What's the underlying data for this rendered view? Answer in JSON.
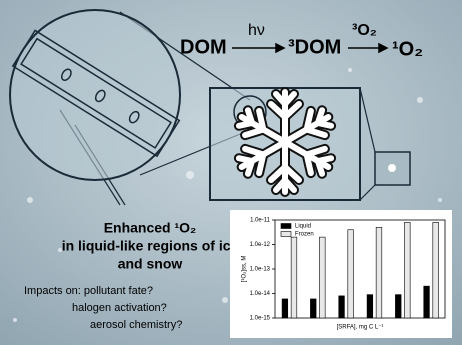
{
  "scheme": {
    "reactant": "DOM",
    "light": "hν",
    "intermediate": "³DOM",
    "oxygen": "³O₂",
    "product": "¹O₂"
  },
  "caption": {
    "lines": [
      "Enhanced ¹O₂",
      "in liquid-like regions of ice",
      "and snow"
    ]
  },
  "impacts": {
    "lines": [
      "Impacts on: pollutant fate?",
      "halogen activation?",
      "aerosol chemistry?"
    ]
  },
  "inset_chart": {
    "type": "bar",
    "log_scale": true,
    "y_label": "[¹O₂]ss, M",
    "x_label": "[SRFA], mg C L⁻¹",
    "ylim": [
      1e-15,
      1e-11
    ],
    "yticks": [
      {
        "value": 1e-15,
        "label": "1.0e-15"
      },
      {
        "value": 1e-14,
        "label": "1.0e-14"
      },
      {
        "value": 1e-13,
        "label": "1.0e-13"
      },
      {
        "value": 1e-12,
        "label": "1.0e-12"
      },
      {
        "value": 1e-11,
        "label": "1.0e-11"
      }
    ],
    "categories": [
      null,
      null,
      null,
      null,
      null,
      null
    ],
    "series": [
      {
        "name": "Liquid",
        "color": "#000000",
        "values": [
          6e-15,
          6e-15,
          8e-15,
          9e-15,
          9e-15,
          2e-14
        ]
      },
      {
        "name": "Frozen",
        "color": "#e8e8e8",
        "values": [
          2e-12,
          2e-12,
          4e-12,
          5e-12,
          8e-12,
          8e-12
        ]
      }
    ]
  }
}
